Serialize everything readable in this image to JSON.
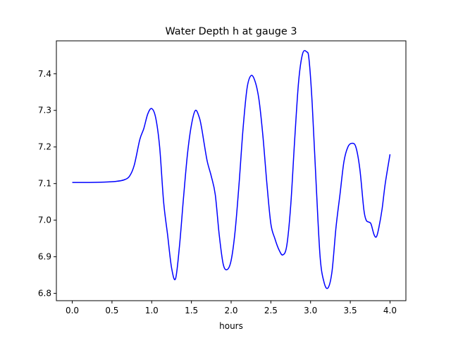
{
  "chart_data": {
    "type": "line",
    "title": "Water Depth h at gauge 3",
    "xlabel": "hours",
    "ylabel": "",
    "xlim": [
      -0.2,
      4.2
    ],
    "ylim": [
      6.78,
      7.49
    ],
    "xticks": [
      0.0,
      0.5,
      1.0,
      1.5,
      2.0,
      2.5,
      3.0,
      3.5,
      4.0
    ],
    "xtick_labels": [
      "0.0",
      "0.5",
      "1.0",
      "1.5",
      "2.0",
      "2.5",
      "3.0",
      "3.5",
      "4.0"
    ],
    "yticks": [
      6.8,
      6.9,
      7.0,
      7.1,
      7.2,
      7.3,
      7.4
    ],
    "ytick_labels": [
      "6.8",
      "6.9",
      "7.0",
      "7.1",
      "7.2",
      "7.3",
      "7.4"
    ],
    "grid": false,
    "series": [
      {
        "color": "#0000ff",
        "x": [
          0.0,
          0.2,
          0.4,
          0.55,
          0.65,
          0.72,
          0.78,
          0.85,
          0.9,
          0.95,
          1.0,
          1.05,
          1.1,
          1.15,
          1.2,
          1.25,
          1.3,
          1.35,
          1.4,
          1.45,
          1.5,
          1.55,
          1.6,
          1.63,
          1.66,
          1.7,
          1.75,
          1.8,
          1.85,
          1.9,
          1.95,
          2.0,
          2.05,
          2.1,
          2.15,
          2.2,
          2.25,
          2.3,
          2.35,
          2.4,
          2.45,
          2.5,
          2.55,
          2.6,
          2.65,
          2.7,
          2.75,
          2.8,
          2.85,
          2.9,
          2.95,
          2.98,
          3.02,
          3.07,
          3.12,
          3.17,
          3.22,
          3.27,
          3.32,
          3.37,
          3.42,
          3.47,
          3.52,
          3.57,
          3.62,
          3.67,
          3.7,
          3.73,
          3.76,
          3.8,
          3.83,
          3.86,
          3.9,
          3.94,
          4.0
        ],
        "y": [
          7.103,
          7.103,
          7.104,
          7.106,
          7.11,
          7.12,
          7.15,
          7.22,
          7.25,
          7.29,
          7.305,
          7.28,
          7.2,
          7.05,
          6.96,
          6.87,
          6.84,
          6.93,
          7.06,
          7.18,
          7.26,
          7.3,
          7.28,
          7.25,
          7.21,
          7.16,
          7.12,
          7.07,
          6.96,
          6.88,
          6.865,
          6.89,
          6.97,
          7.1,
          7.25,
          7.36,
          7.395,
          7.38,
          7.33,
          7.23,
          7.1,
          6.99,
          6.95,
          6.92,
          6.905,
          6.93,
          7.04,
          7.22,
          7.38,
          7.455,
          7.46,
          7.44,
          7.32,
          7.1,
          6.9,
          6.83,
          6.815,
          6.86,
          6.98,
          7.07,
          7.16,
          7.2,
          7.21,
          7.2,
          7.14,
          7.03,
          7.0,
          6.995,
          6.99,
          6.96,
          6.955,
          6.98,
          7.03,
          7.1,
          7.18
        ]
      }
    ]
  }
}
